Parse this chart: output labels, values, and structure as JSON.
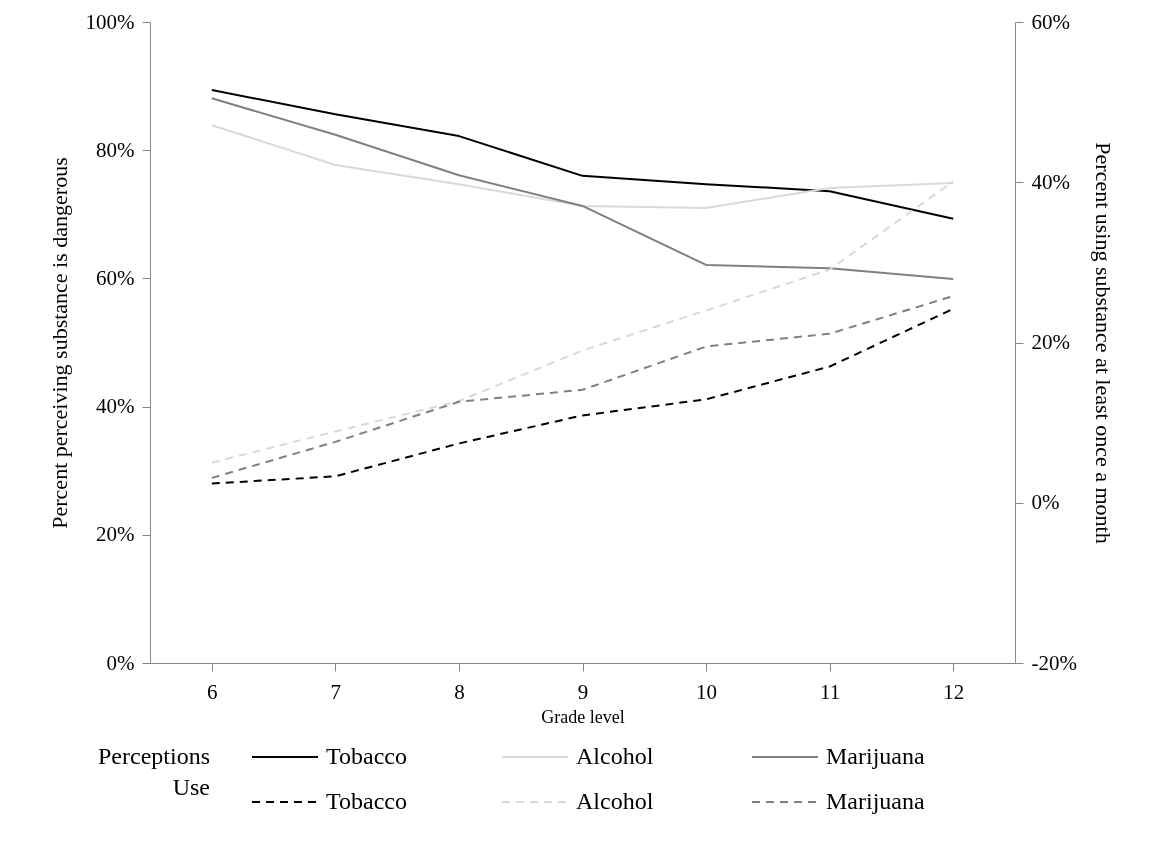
{
  "chart_data": {
    "type": "line",
    "xlabel": "Grade level",
    "ylabel": "Percent perceiving substance is dangerous",
    "y2label": "Percent using substance at least once a month",
    "categories": [
      "6",
      "7",
      "8",
      "9",
      "10",
      "11",
      "12"
    ],
    "ylim": [
      0,
      100
    ],
    "yticks": [
      {
        "value": 0,
        "label": "0%"
      },
      {
        "value": 20,
        "label": "20%"
      },
      {
        "value": 40,
        "label": "40%"
      },
      {
        "value": 60,
        "label": "60%"
      },
      {
        "value": 80,
        "label": "80%"
      },
      {
        "value": 100,
        "label": "100%"
      }
    ],
    "y2lim": [
      -20,
      60
    ],
    "y2ticks": [
      {
        "value": -20,
        "label": "-20%"
      },
      {
        "value": 0,
        "label": "0%"
      },
      {
        "value": 20,
        "label": "20%"
      },
      {
        "value": 40,
        "label": "40%"
      },
      {
        "value": 60,
        "label": "60%"
      }
    ],
    "grid": false,
    "legend": "bottom",
    "marker": "none",
    "annotations": [
      "Perceptions",
      "Use"
    ],
    "series": [
      {
        "name": "Tobacco",
        "color": "#000000",
        "line_style": "solid",
        "values": [
          89.4,
          85.6,
          82.2,
          76,
          74.7,
          73.6,
          69.3
        ]
      },
      {
        "name": "Alcohol",
        "color": "#d9d9d9",
        "line_style": "solid",
        "values": [
          83.9,
          77.7,
          74.7,
          71.3,
          71,
          74.1,
          74.9
        ]
      },
      {
        "name": "Marijuana",
        "color": "#808080",
        "line_style": "solid",
        "values": [
          88.1,
          82.4,
          76.1,
          71.3,
          62.1,
          61.6,
          59.9
        ]
      },
      {
        "name": "Tobacco",
        "color": "#000000",
        "line_style": "dashed",
        "axis": "y2",
        "values": [
          2.4,
          3.3,
          7.4,
          10.9,
          12.9,
          17,
          24.2
        ]
      },
      {
        "name": "Alcohol",
        "color": "#d9d9d9",
        "line_style": "dashed",
        "axis": "y2",
        "values": [
          5,
          8.9,
          12.7,
          19,
          24,
          29.1,
          40.1
        ]
      },
      {
        "name": "Marijuana",
        "color": "#808080",
        "line_style": "dashed",
        "axis": "y2",
        "values": [
          3.1,
          7.6,
          12.6,
          14.1,
          19.5,
          21.1,
          25.8
        ]
      }
    ]
  }
}
